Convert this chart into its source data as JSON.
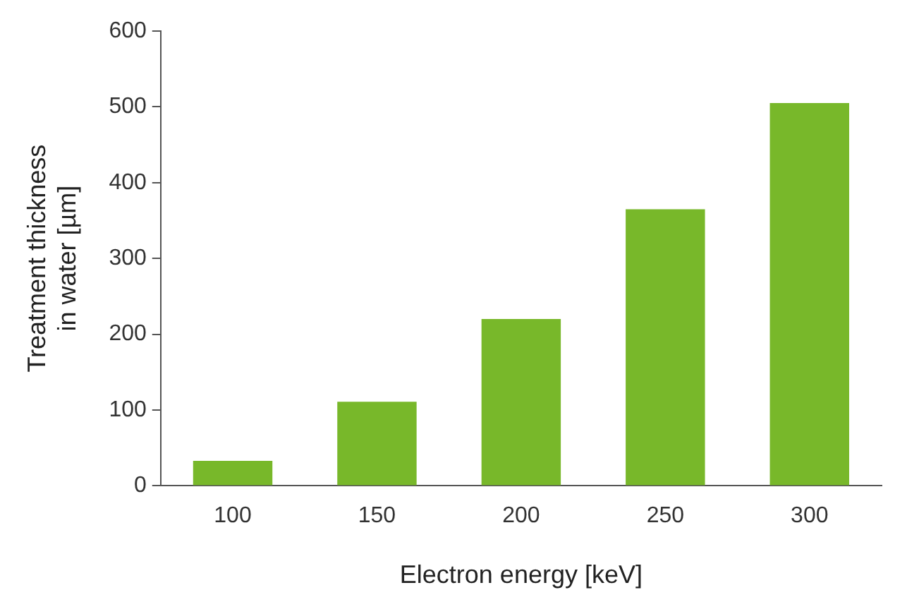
{
  "chart_data": {
    "type": "bar",
    "xlabel": "Electron energy [keV]",
    "ylabel": "Treatment thickness\nin water [µm]",
    "categories": [
      "100",
      "150",
      "200",
      "250",
      "300"
    ],
    "values": [
      33,
      111,
      220,
      365,
      505
    ],
    "color": "#78b82a",
    "ylim": [
      0,
      600
    ],
    "yticks": [
      0,
      100,
      200,
      300,
      400,
      500,
      600
    ],
    "grid": false,
    "legend": false
  }
}
